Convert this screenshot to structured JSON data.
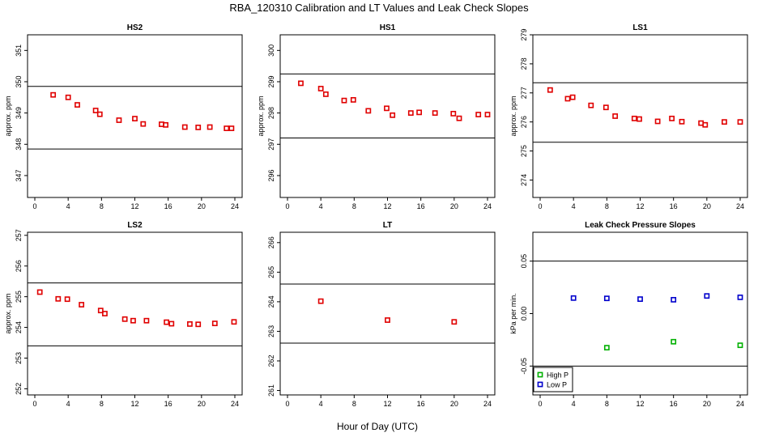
{
  "figure": {
    "title": "RBA_120310  Calibration and LT Values and Leak Check Slopes",
    "xlabel": "Hour of Day (UTC)"
  },
  "colors": {
    "red": "#e00000",
    "green": "#00b000",
    "blue": "#0000cc"
  },
  "chart_data": [
    {
      "type": "scatter",
      "title": "HS2",
      "ylabel": "approx. ppm",
      "xlim": [
        0,
        24
      ],
      "ylim": [
        346.3,
        351.5
      ],
      "xticks": [
        0,
        4,
        8,
        12,
        16,
        20,
        24
      ],
      "yticks": [
        347,
        348,
        349,
        350,
        351
      ],
      "hlines": [
        349.85,
        347.85
      ],
      "series": [
        {
          "color": "red",
          "points": [
            [
              2.2,
              349.58
            ],
            [
              4.0,
              349.5
            ],
            [
              5.1,
              349.26
            ],
            [
              7.3,
              349.08
            ],
            [
              7.8,
              348.96
            ],
            [
              10.1,
              348.77
            ],
            [
              12.0,
              348.82
            ],
            [
              13.0,
              348.65
            ],
            [
              15.2,
              348.64
            ],
            [
              15.7,
              348.62
            ],
            [
              18.0,
              348.55
            ],
            [
              19.6,
              348.54
            ],
            [
              21.0,
              348.55
            ],
            [
              23.0,
              348.51
            ],
            [
              23.6,
              348.51
            ]
          ]
        }
      ]
    },
    {
      "type": "scatter",
      "title": "HS1",
      "ylabel": "approx. ppm",
      "xlim": [
        0,
        24
      ],
      "ylim": [
        295.3,
        300.5
      ],
      "xticks": [
        0,
        4,
        8,
        12,
        16,
        20,
        24
      ],
      "yticks": [
        296,
        297,
        298,
        299,
        300
      ],
      "hlines": [
        299.25,
        297.2
      ],
      "series": [
        {
          "color": "red",
          "points": [
            [
              1.6,
              298.95
            ],
            [
              4.0,
              298.78
            ],
            [
              4.6,
              298.6
            ],
            [
              6.8,
              298.4
            ],
            [
              7.9,
              298.42
            ],
            [
              9.7,
              298.07
            ],
            [
              11.9,
              298.15
            ],
            [
              12.6,
              297.93
            ],
            [
              14.8,
              298.0
            ],
            [
              15.8,
              298.02
            ],
            [
              17.7,
              298.0
            ],
            [
              19.9,
              297.98
            ],
            [
              20.6,
              297.83
            ],
            [
              22.9,
              297.95
            ],
            [
              24.0,
              297.95
            ]
          ]
        }
      ]
    },
    {
      "type": "scatter",
      "title": "LS1",
      "ylabel": "approx. ppm",
      "xlim": [
        0,
        24
      ],
      "ylim": [
        273.4,
        279.0
      ],
      "xticks": [
        0,
        4,
        8,
        12,
        16,
        20,
        24
      ],
      "yticks": [
        274,
        275,
        276,
        277,
        278,
        279
      ],
      "hlines": [
        277.35,
        275.3
      ],
      "series": [
        {
          "color": "red",
          "points": [
            [
              1.2,
              277.1
            ],
            [
              3.3,
              276.8
            ],
            [
              3.9,
              276.85
            ],
            [
              6.1,
              276.57
            ],
            [
              7.9,
              276.5
            ],
            [
              9.0,
              276.2
            ],
            [
              11.3,
              276.12
            ],
            [
              11.9,
              276.1
            ],
            [
              14.1,
              276.02
            ],
            [
              15.8,
              276.12
            ],
            [
              17.0,
              276.01
            ],
            [
              19.3,
              275.96
            ],
            [
              19.8,
              275.9
            ],
            [
              22.1,
              276.0
            ],
            [
              24.0,
              276.0
            ]
          ]
        }
      ]
    },
    {
      "type": "scatter",
      "title": "LS2",
      "ylabel": "approx. ppm",
      "xlim": [
        0,
        24
      ],
      "ylim": [
        251.8,
        257.1
      ],
      "xticks": [
        0,
        4,
        8,
        12,
        16,
        20,
        24
      ],
      "yticks": [
        252,
        253,
        254,
        255,
        256,
        257
      ],
      "hlines": [
        255.45,
        253.4
      ],
      "series": [
        {
          "color": "red",
          "points": [
            [
              0.6,
              255.15
            ],
            [
              2.8,
              254.93
            ],
            [
              3.9,
              254.92
            ],
            [
              5.6,
              254.74
            ],
            [
              7.9,
              254.55
            ],
            [
              8.4,
              254.45
            ],
            [
              10.8,
              254.27
            ],
            [
              11.8,
              254.22
            ],
            [
              13.4,
              254.22
            ],
            [
              15.8,
              254.17
            ],
            [
              16.4,
              254.12
            ],
            [
              18.6,
              254.11
            ],
            [
              19.6,
              254.1
            ],
            [
              21.6,
              254.13
            ],
            [
              23.9,
              254.18
            ]
          ]
        }
      ]
    },
    {
      "type": "scatter",
      "title": "LT",
      "ylabel": "",
      "xlim": [
        0,
        24
      ],
      "ylim": [
        260.85,
        266.35
      ],
      "xticks": [
        0,
        4,
        8,
        12,
        16,
        20,
        24
      ],
      "yticks": [
        261,
        262,
        263,
        264,
        265,
        266
      ],
      "hlines": [
        264.6,
        262.6
      ],
      "series": [
        {
          "color": "red",
          "points": [
            [
              4.0,
              264.02
            ],
            [
              12.0,
              263.38
            ],
            [
              20.0,
              263.32
            ]
          ]
        }
      ]
    },
    {
      "type": "scatter",
      "title": "Leak Check Pressure Slopes",
      "ylabel": "kPa per min.",
      "xlim": [
        0,
        24
      ],
      "ylim": [
        -0.0775,
        0.0775
      ],
      "xticks": [
        0,
        4,
        8,
        12,
        16,
        20,
        24
      ],
      "yticks": [
        -0.05,
        0.0,
        0.05
      ],
      "yticklabels": [
        "-0.05",
        "0.00",
        "0.05"
      ],
      "hlines": [
        0.05,
        -0.05
      ],
      "legend": {
        "position": "bottom-left",
        "entries": [
          {
            "label": "High P",
            "color": "green"
          },
          {
            "label": "Low P",
            "color": "blue"
          }
        ]
      },
      "series": [
        {
          "name": "High P",
          "color": "green",
          "points": [
            [
              8.0,
              -0.0325
            ],
            [
              16.0,
              -0.0268
            ],
            [
              24.0,
              -0.0302
            ]
          ]
        },
        {
          "name": "Low P",
          "color": "blue",
          "points": [
            [
              4.0,
              0.0148
            ],
            [
              8.0,
              0.0145
            ],
            [
              12.0,
              0.0138
            ],
            [
              16.0,
              0.0132
            ],
            [
              20.0,
              0.0168
            ],
            [
              24.0,
              0.0155
            ]
          ]
        }
      ]
    }
  ]
}
